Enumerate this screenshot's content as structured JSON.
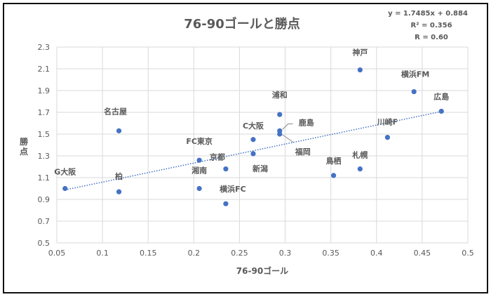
{
  "chart_data": {
    "type": "scatter",
    "title": "76-90ゴールと勝点",
    "xlabel": "76-90ゴール",
    "ylabel": "勝点",
    "xlim": [
      0.05,
      0.5
    ],
    "ylim": [
      0.5,
      2.3
    ],
    "xticks": [
      "0.05",
      "0.1",
      "0.15",
      "0.2",
      "0.25",
      "0.3",
      "0.35",
      "0.4",
      "0.45",
      "0.5"
    ],
    "yticks": [
      "0.5",
      "0.7",
      "0.9",
      "1.1",
      "1.3",
      "1.5",
      "1.7",
      "1.9",
      "2.1",
      "2.3"
    ],
    "grid": true,
    "point_color": "#4472C4",
    "trendline": {
      "type": "linear",
      "slope": 1.7485,
      "intercept": 0.884,
      "style": "dotted",
      "equation": "y = 1.7485x + 0.884",
      "r2": "R² = 0.356",
      "r": "R = 0.60"
    },
    "points": [
      {
        "label": "G大阪",
        "x": 0.059,
        "y": 1.0
      },
      {
        "label": "柏",
        "x": 0.118,
        "y": 0.97
      },
      {
        "label": "名古屋",
        "x": 0.118,
        "y": 1.53
      },
      {
        "label": "湘南",
        "x": 0.206,
        "y": 1.0
      },
      {
        "label": "FC東京",
        "x": 0.206,
        "y": 1.26
      },
      {
        "label": "横浜FC",
        "x": 0.235,
        "y": 0.86
      },
      {
        "label": "京都",
        "x": 0.235,
        "y": 1.18
      },
      {
        "label": "C大阪",
        "x": 0.265,
        "y": 1.45
      },
      {
        "label": "新潟",
        "x": 0.265,
        "y": 1.32
      },
      {
        "label": "浦和",
        "x": 0.294,
        "y": 1.68
      },
      {
        "label": "鹿島",
        "x": 0.294,
        "y": 1.53
      },
      {
        "label": "福岡",
        "x": 0.294,
        "y": 1.5
      },
      {
        "label": "鳥栖",
        "x": 0.353,
        "y": 1.12
      },
      {
        "label": "札幌",
        "x": 0.382,
        "y": 1.18
      },
      {
        "label": "神戸",
        "x": 0.382,
        "y": 2.09
      },
      {
        "label": "川崎F",
        "x": 0.412,
        "y": 1.47
      },
      {
        "label": "横浜FM",
        "x": 0.441,
        "y": 1.89
      },
      {
        "label": "広島",
        "x": 0.471,
        "y": 1.71
      }
    ]
  }
}
